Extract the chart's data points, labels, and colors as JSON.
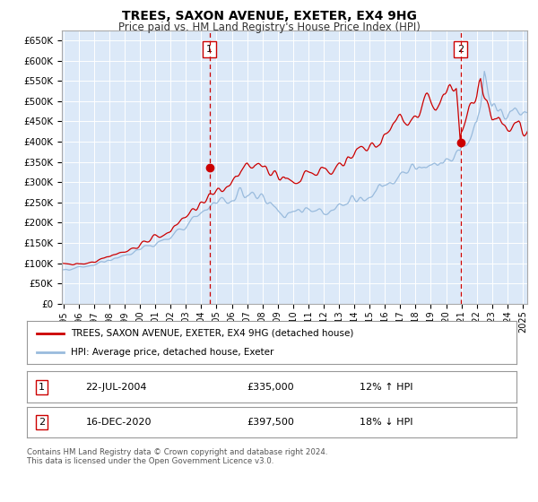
{
  "title": "TREES, SAXON AVENUE, EXETER, EX4 9HG",
  "subtitle": "Price paid vs. HM Land Registry's House Price Index (HPI)",
  "ylim": [
    0,
    675000
  ],
  "yticks": [
    0,
    50000,
    100000,
    150000,
    200000,
    250000,
    300000,
    350000,
    400000,
    450000,
    500000,
    550000,
    600000,
    650000
  ],
  "ytick_labels": [
    "£0",
    "£50K",
    "£100K",
    "£150K",
    "£200K",
    "£250K",
    "£300K",
    "£350K",
    "£400K",
    "£450K",
    "£500K",
    "£550K",
    "£600K",
    "£650K"
  ],
  "xlim_start": 1994.9,
  "xlim_end": 2025.3,
  "plot_bg_color": "#dce9f8",
  "fig_bg_color": "#ffffff",
  "line1_color": "#cc0000",
  "line2_color": "#99bbdd",
  "vline_color": "#cc0000",
  "grid_color": "#ffffff",
  "sale1_x": 2004.55,
  "sale1_y": 335000,
  "sale2_x": 2020.96,
  "sale2_y": 397500,
  "legend1_label": "TREES, SAXON AVENUE, EXETER, EX4 9HG (detached house)",
  "legend2_label": "HPI: Average price, detached house, Exeter",
  "table_row1": [
    "1",
    "22-JUL-2004",
    "£335,000",
    "12% ↑ HPI"
  ],
  "table_row2": [
    "2",
    "16-DEC-2020",
    "£397,500",
    "18% ↓ HPI"
  ],
  "footer": "Contains HM Land Registry data © Crown copyright and database right 2024.\nThis data is licensed under the Open Government Licence v3.0."
}
